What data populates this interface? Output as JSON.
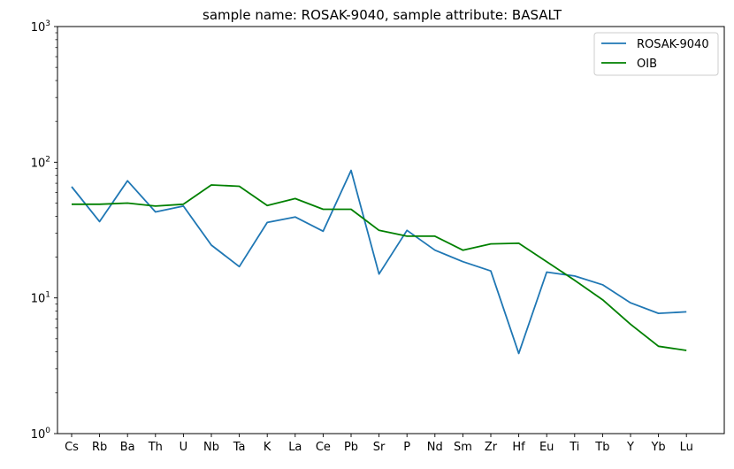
{
  "chart_data": {
    "type": "line",
    "title": "sample name: ROSAK-9040, sample attribute: BASALT",
    "xlabel": "",
    "ylabel": "",
    "yscale": "log",
    "ylim": [
      1,
      1000
    ],
    "yticks": [
      {
        "value": 1,
        "base": "10",
        "exp": "0"
      },
      {
        "value": 10,
        "base": "10",
        "exp": "1"
      },
      {
        "value": 100,
        "base": "10",
        "exp": "2"
      },
      {
        "value": 1000,
        "base": "10",
        "exp": "3"
      }
    ],
    "grid": false,
    "legend_position": "top-right",
    "categories": [
      "Cs",
      "Rb",
      "Ba",
      "Th",
      "U",
      "Nb",
      "Ta",
      "K",
      "La",
      "Ce",
      "Pb",
      "Sr",
      "P",
      "Nd",
      "Sm",
      "Zr",
      "Hf",
      "Eu",
      "Ti",
      "Tb",
      "Y",
      "Yb",
      "Lu"
    ],
    "series": [
      {
        "name": "ROSAK-9040",
        "color": "#1f77b4",
        "values": [
          66,
          36.5,
          73,
          43,
          47.5,
          24.5,
          17,
          36,
          39.5,
          31,
          87,
          15,
          31.5,
          22.5,
          18.5,
          15.8,
          3.9,
          15.5,
          14.5,
          12.5,
          9.2,
          7.7,
          7.9
        ]
      },
      {
        "name": "OIB",
        "color": "#008000",
        "values": [
          49,
          49,
          50,
          47.5,
          49,
          68,
          66.5,
          48,
          54,
          45,
          45,
          31.5,
          28.5,
          28.5,
          22.5,
          25,
          25.3,
          18.5,
          13.5,
          9.7,
          6.4,
          4.4,
          4.1
        ]
      }
    ]
  }
}
